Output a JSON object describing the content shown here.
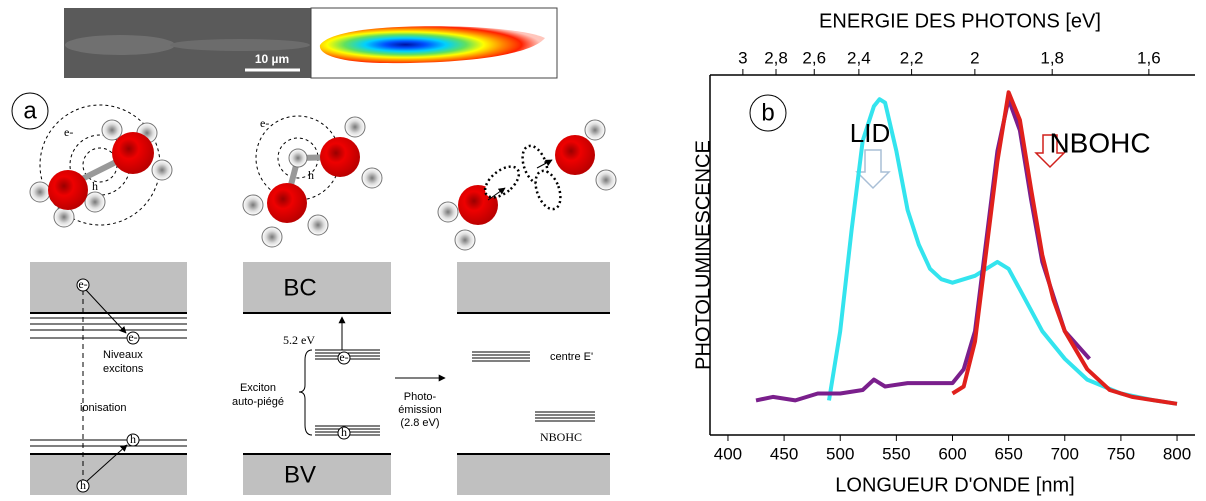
{
  "figure_a": {
    "label": "a",
    "scale_bar": "10 µm",
    "molecule_1": {
      "electron": "e-",
      "hole": "h"
    },
    "molecule_2": {
      "electron": "e-",
      "hole": "h"
    },
    "band_1": {
      "electron_top": "e-",
      "electron_level": "e-",
      "hole_level": "h",
      "hole_bottom": "h",
      "levels": [
        "Niveaux",
        "excitons"
      ],
      "process": "ionisation"
    },
    "band_2": {
      "conduction": "BC",
      "valence": "BV",
      "gap": "5.2 eV",
      "electron": "e-",
      "hole": "h",
      "exciton": [
        "Exciton",
        "auto-piégé"
      ],
      "emission": [
        "Photo-",
        "émission",
        "(2.8 eV)"
      ]
    },
    "band_3": {
      "centre": "centre E'",
      "defect": "NBOHC"
    }
  },
  "chart_data": {
    "type": "line",
    "panel_label": "b",
    "xlabel": "LONGUEUR D'ONDE [nm]",
    "ylabel": "PHOTOLUMINESCENCE",
    "x2label": "ENERGIE DES PHOTONS [eV]",
    "xlim": [
      384,
      816
    ],
    "xticks": [
      400,
      450,
      500,
      550,
      600,
      650,
      700,
      750,
      800
    ],
    "x2ticks": [
      3,
      {
        "value": 2.8,
        "label": "2,8"
      },
      {
        "value": 2.6,
        "label": "2,6"
      },
      {
        "value": 2.4,
        "label": "2,4"
      },
      {
        "value": 2.2,
        "label": "2,2"
      },
      2,
      {
        "value": 1.8,
        "label": "1,8"
      },
      {
        "value": 1.6,
        "label": "1,6"
      }
    ],
    "ylim": [
      0,
      104
    ],
    "annotations": [
      {
        "text": "LID",
        "color": "#a9bfd6"
      },
      {
        "text": "NBOHC",
        "color": "#d0201c"
      }
    ],
    "series": [
      {
        "color": "#33e4ee",
        "x": [
          490,
          500,
          510,
          520,
          530,
          535,
          540,
          550,
          560,
          570,
          580,
          590,
          600,
          620,
          640,
          650,
          660,
          680,
          700,
          720,
          750,
          780,
          800
        ],
        "values": [
          10,
          30,
          59,
          85,
          95,
          97,
          96,
          82,
          65,
          55,
          48,
          45,
          44,
          46,
          50,
          48,
          42,
          30,
          22,
          16,
          12,
          10,
          9
        ]
      },
      {
        "color": "#7a1f8c",
        "x": [
          425,
          440,
          460,
          480,
          500,
          520,
          530,
          540,
          560,
          580,
          600,
          610,
          620,
          630,
          640,
          650,
          660,
          670,
          680,
          700,
          722
        ],
        "values": [
          10,
          11,
          10,
          12,
          12,
          13,
          16,
          14,
          15,
          15,
          15,
          19,
          30,
          56,
          82,
          97,
          88,
          68,
          50,
          30,
          22
        ]
      },
      {
        "color": "#e0201c",
        "x": [
          600,
          610,
          620,
          630,
          640,
          650,
          660,
          670,
          680,
          690,
          700,
          720,
          740,
          760,
          780,
          800
        ],
        "values": [
          12,
          14,
          27,
          53,
          79,
          99,
          91,
          71,
          52,
          39,
          30,
          19,
          13,
          11,
          10,
          9
        ]
      }
    ]
  }
}
